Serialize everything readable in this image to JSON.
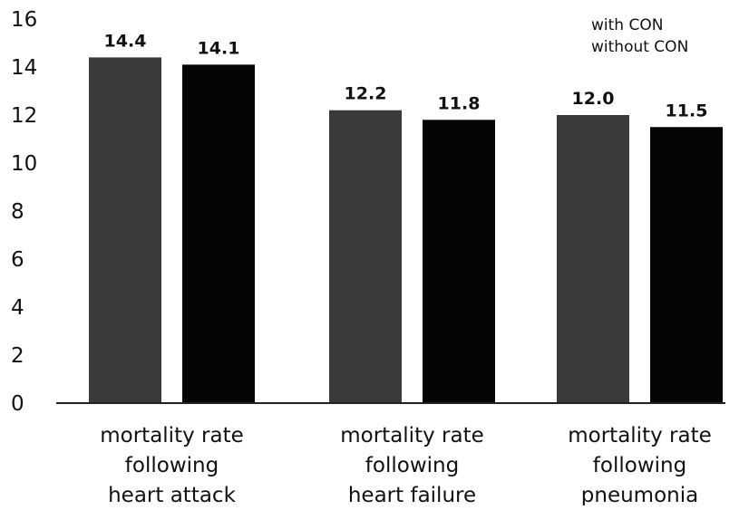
{
  "chart_data": {
    "type": "bar",
    "categories": [
      [
        "mortality rate",
        "following",
        "heart attack"
      ],
      [
        "mortality rate",
        "following",
        "heart failure"
      ],
      [
        "mortality rate",
        "following",
        "pneumonia"
      ]
    ],
    "series": [
      {
        "name": "with CON",
        "values": [
          14.4,
          12.2,
          12.0
        ],
        "color": "#3a3a3a"
      },
      {
        "name": "without CON",
        "values": [
          14.1,
          11.8,
          11.5
        ],
        "color": "#050505"
      }
    ],
    "data_labels": [
      [
        "14.4",
        "12.2",
        "12.0"
      ],
      [
        "14.1",
        "11.8",
        "11.5"
      ]
    ],
    "yticks": [
      "0",
      "2",
      "4",
      "6",
      "8",
      "10",
      "12",
      "14",
      "16"
    ],
    "ylim": [
      0,
      16
    ],
    "title": "",
    "xlabel": "",
    "ylabel": "",
    "legend_position": "top-right",
    "grid": false
  }
}
